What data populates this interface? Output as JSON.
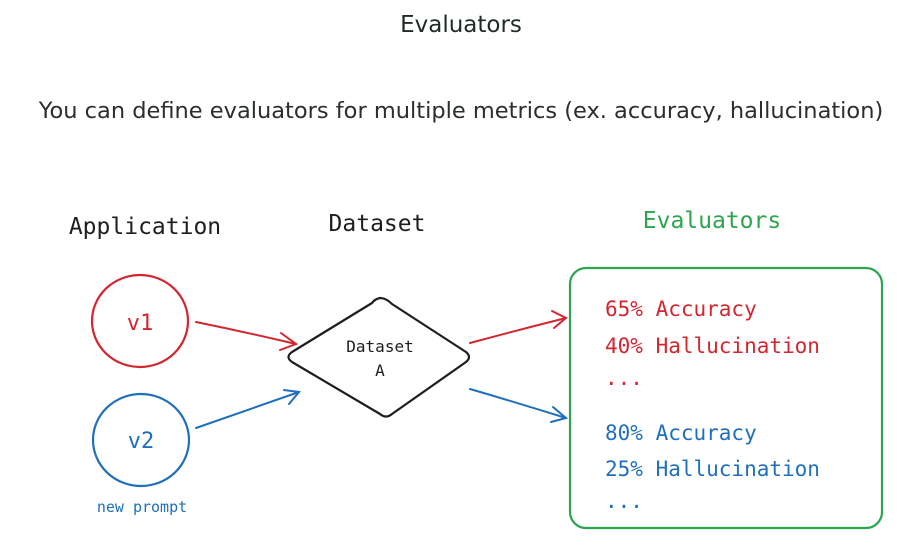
{
  "title": "Evaluators",
  "subtitle": "You can define evaluators for multiple metrics (ex. accuracy, hallucination)",
  "diagram": {
    "headers": {
      "application": "Application",
      "dataset": "Dataset",
      "evaluators": "Evaluators"
    },
    "versions": {
      "v1": "v1",
      "v2": "v2",
      "v2_note": "new prompt"
    },
    "dataset_node": {
      "line1": "Dataset",
      "line2": "A"
    },
    "results": {
      "v1": {
        "accuracy": "65% Accuracy",
        "hallucination": "40% Hallucination",
        "more": "..."
      },
      "v2": {
        "accuracy": "80% Accuracy",
        "hallucination": "25% Hallucination",
        "more": "..."
      }
    },
    "colors": {
      "red": "#d3262f",
      "blue": "#1f6fbd",
      "green": "#2da44e",
      "ink": "#1e1e1e"
    }
  }
}
